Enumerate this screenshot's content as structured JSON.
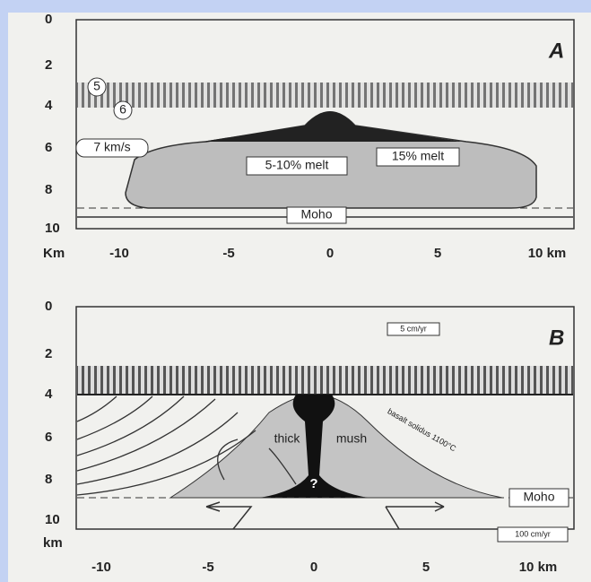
{
  "panels": [
    {
      "label": "A",
      "y_ticks": [
        "0",
        "2",
        "4",
        "6",
        "8",
        "10"
      ],
      "x_unit": "Km",
      "x_ticks": [
        "-10",
        "-5",
        "0",
        "5",
        "10 km"
      ],
      "annotations": [
        "5",
        "6",
        "7 km/s",
        "5-10% melt",
        "15% melt",
        "Moho"
      ]
    },
    {
      "label": "B",
      "y_ticks": [
        "0",
        "2",
        "4",
        "6",
        "8",
        "10"
      ],
      "y_unit": "km",
      "x_ticks": [
        "-10",
        "-5",
        "0",
        "5",
        "10 km"
      ],
      "annotations": [
        "5 cm/yr",
        "thick",
        "mush",
        "basalt solidus 1100°C",
        "?",
        "Moho",
        "100 cm/yr"
      ]
    }
  ]
}
